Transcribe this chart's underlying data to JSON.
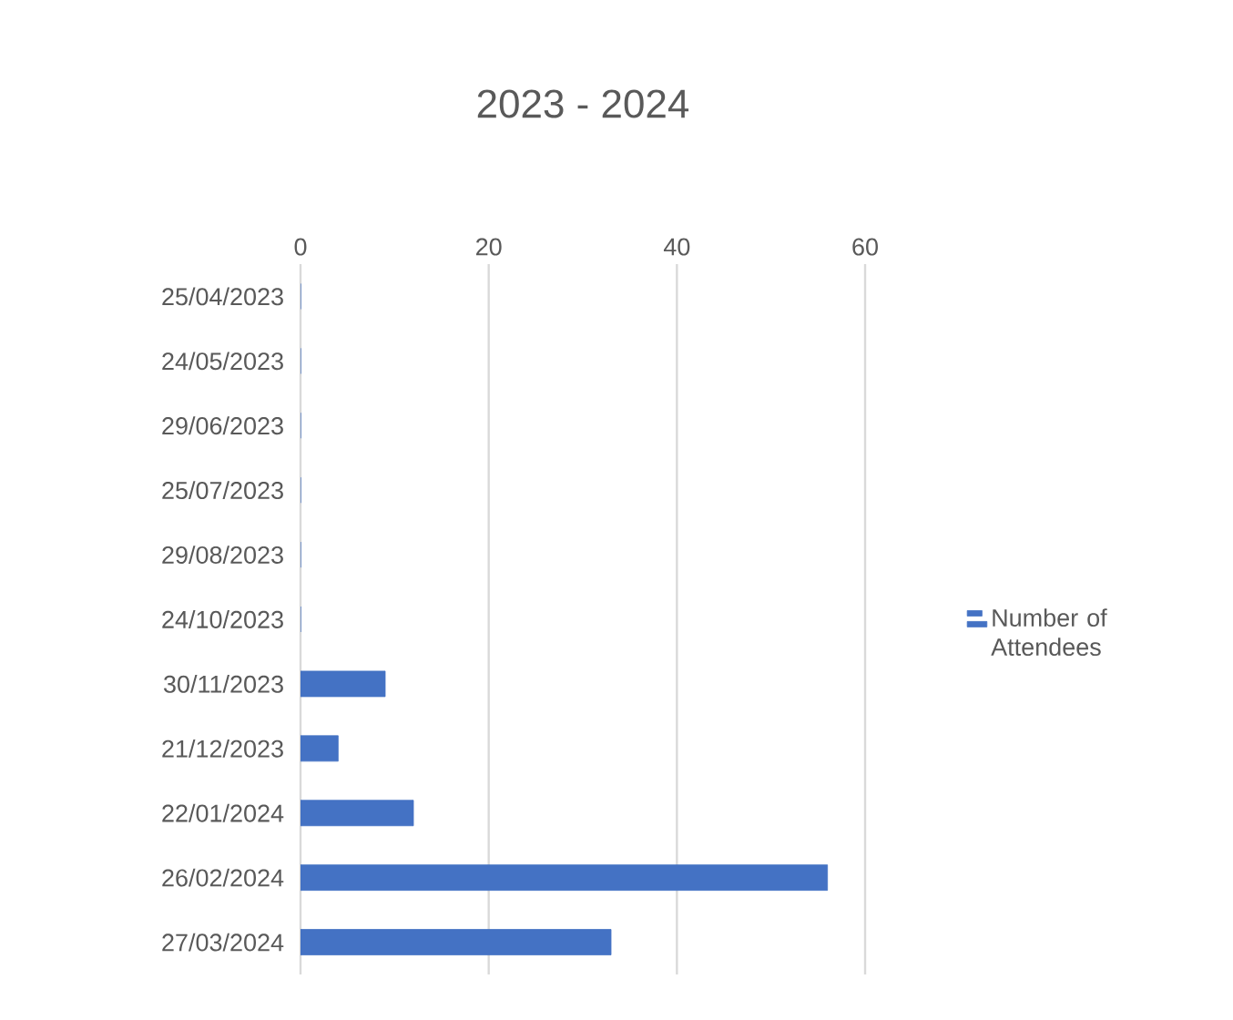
{
  "chart_data": {
    "type": "bar",
    "orientation": "horizontal",
    "title": "2023 - 2024",
    "categories": [
      "25/04/2023",
      "24/05/2023",
      "29/06/2023",
      "25/07/2023",
      "29/08/2023",
      "24/10/2023",
      "30/11/2023",
      "21/12/2023",
      "22/01/2024",
      "26/02/2024",
      "27/03/2024"
    ],
    "series": [
      {
        "name": "Number of Attendees",
        "color": "#4472c4",
        "values": [
          0,
          0,
          0,
          0,
          0,
          0,
          9,
          4,
          12,
          56,
          33
        ]
      }
    ],
    "xlim": [
      0,
      60
    ],
    "xticks": [
      0,
      20,
      40,
      60
    ],
    "grid": "x",
    "legend": "right"
  }
}
